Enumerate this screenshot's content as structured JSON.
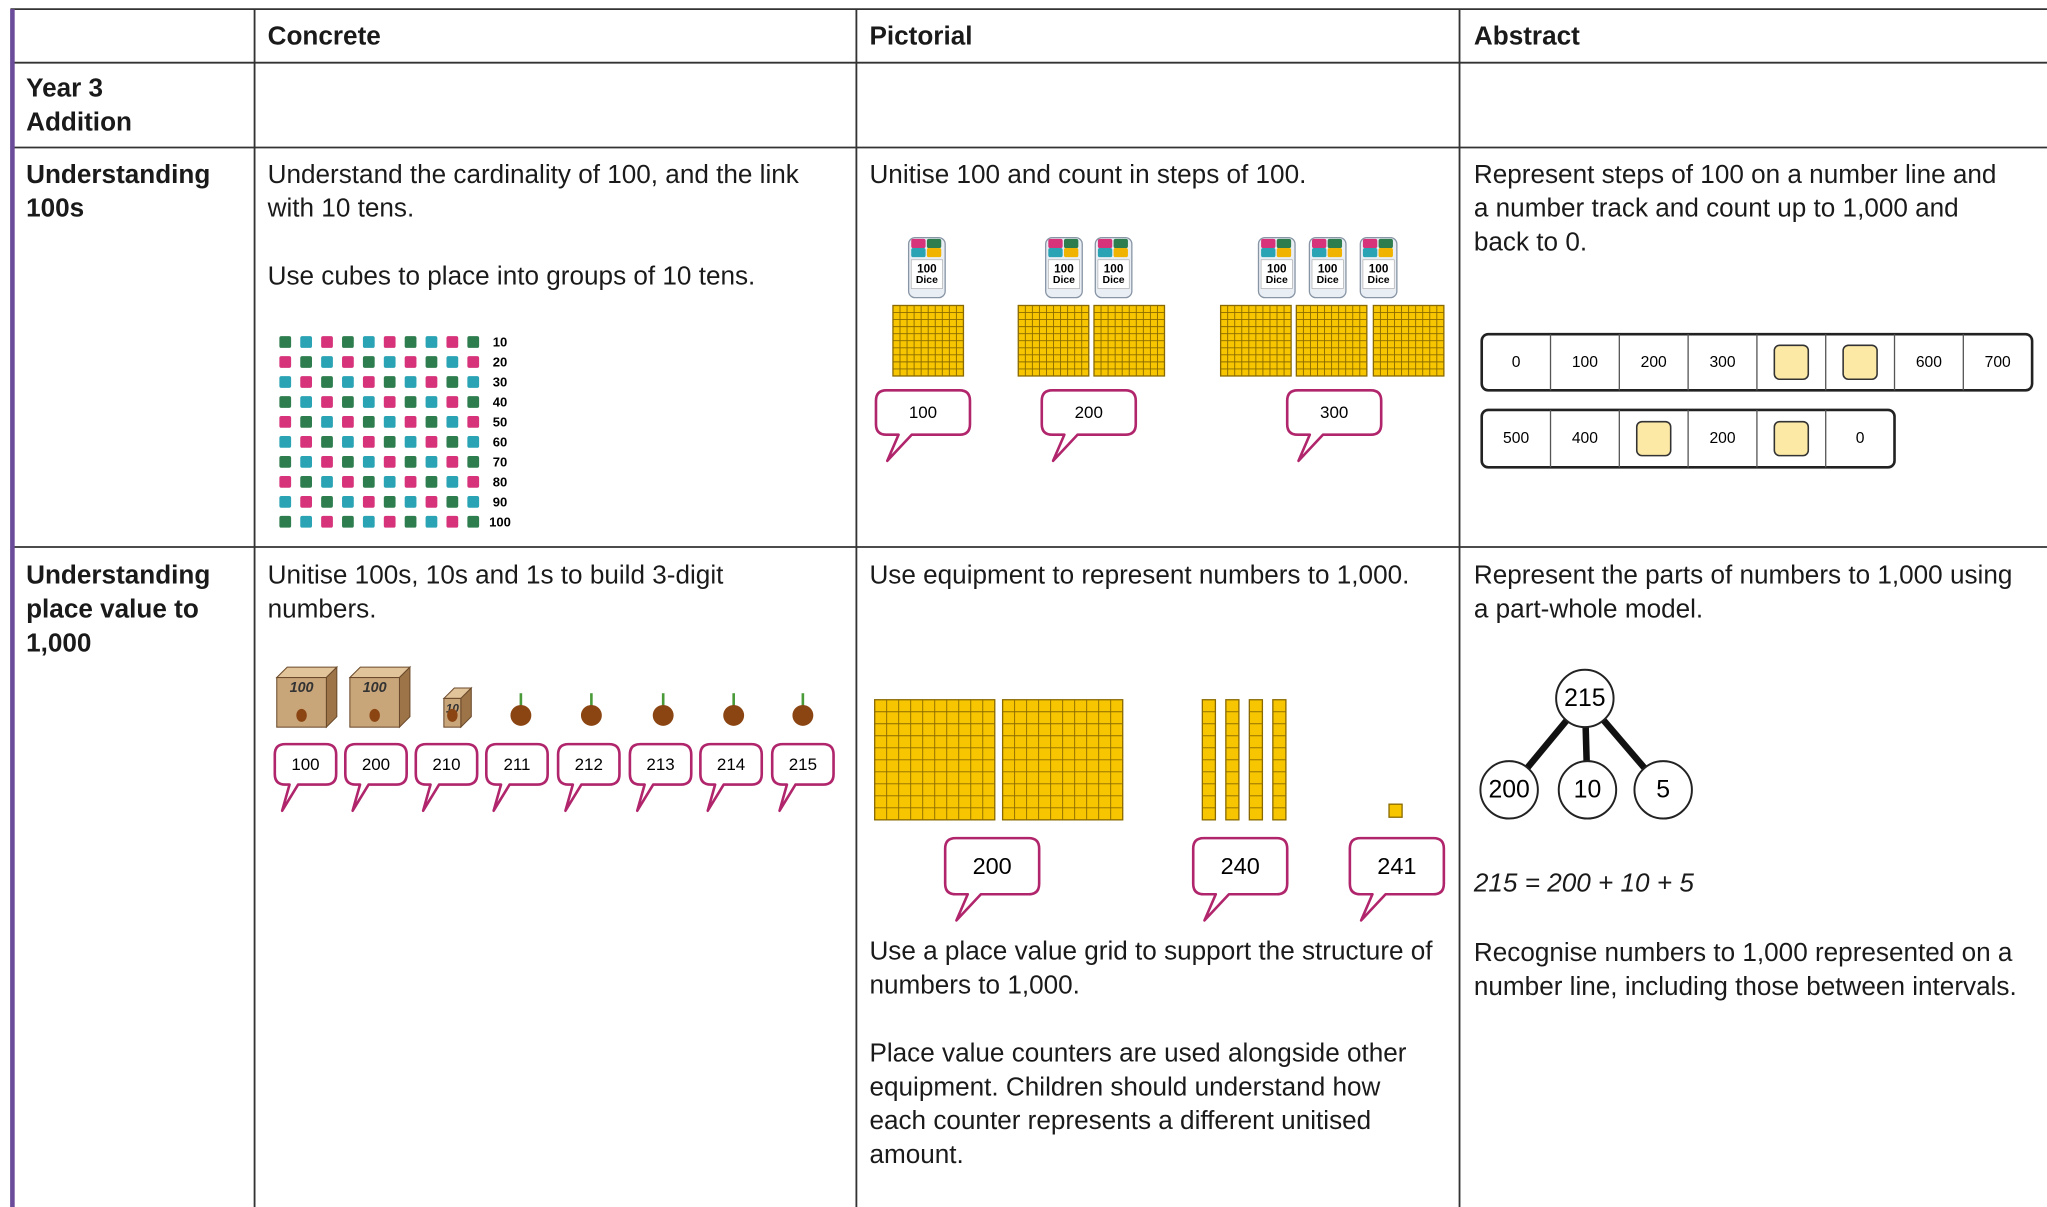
{
  "table": {
    "headers": [
      "Concrete",
      "Pictorial",
      "Abstract"
    ],
    "rows": [
      {
        "label": [
          "Year 3",
          "Addition"
        ]
      },
      {
        "label": [
          "Understanding",
          "100s"
        ],
        "concrete": {
          "text": [
            "Understand the cardinality of 100, and the link with 10 tens.",
            "Use cubes to place into groups of 10 tens."
          ],
          "cube_labels": [
            10,
            20,
            30,
            40,
            50,
            60,
            70,
            80,
            90,
            100
          ]
        },
        "pictorial": {
          "text": [
            "Unitise 100 and count in steps of 100."
          ],
          "jar_label": [
            "100",
            "Dice"
          ],
          "bubbles": [
            100,
            200,
            300
          ]
        },
        "abstract": {
          "text": [
            "Represent steps of 100 on a number line and a number track and count up to 1,000 and back to 0."
          ],
          "number_track_1": [
            0,
            100,
            200,
            300,
            null,
            null,
            600,
            700
          ],
          "number_track_2": [
            500,
            400,
            null,
            200,
            null,
            0
          ]
        }
      },
      {
        "label": [
          "Understanding",
          "place value to",
          "1,000"
        ],
        "concrete": {
          "text": [
            "Unitise 100s, 10s and 1s to build 3-digit numbers."
          ],
          "box_labels": [
            100,
            100,
            10
          ],
          "bubbles": [
            100,
            200,
            210,
            211,
            212,
            213,
            214,
            215
          ]
        },
        "pictorial": {
          "text": [
            "Use equipment to represent numbers to 1,000."
          ],
          "bubbles": [
            200,
            240,
            241
          ],
          "text_2": [
            "Use a place value grid to support the structure of numbers to 1,000.",
            "Place value counters are used alongside other equipment. Children should understand how each counter represents a different unitised amount."
          ]
        },
        "abstract": {
          "text": [
            "Represent the parts of numbers to 1,000 using a part-whole model."
          ],
          "part_whole": {
            "whole": 215,
            "parts": [
              200,
              10,
              5
            ]
          },
          "equation": "215 = 200 + 10 + 5",
          "text_2": [
            "Recognise numbers to 1,000 represented on a number line, including those between intervals."
          ]
        }
      }
    ]
  }
}
